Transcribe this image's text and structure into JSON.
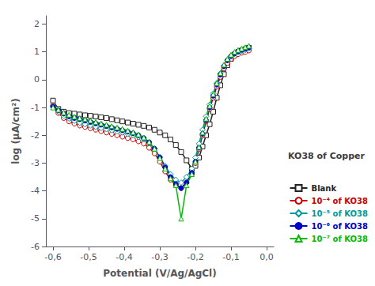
{
  "chart_data": {
    "type": "line",
    "legend_title": "KO38 of Copper",
    "xlabel": "Potential (V/Ag/AgCl)",
    "ylabel": "log (μA/cm²)",
    "xlim": [
      -0.62,
      0.02
    ],
    "ylim": [
      -6,
      2.3
    ],
    "xticks": [
      {
        "value": -0.6,
        "label": "-0,6"
      },
      {
        "value": -0.5,
        "label": "-0,5"
      },
      {
        "value": -0.4,
        "label": "-0,4"
      },
      {
        "value": -0.3,
        "label": "-0,3"
      },
      {
        "value": -0.2,
        "label": "-0,2"
      },
      {
        "value": -0.1,
        "label": "-0,1"
      },
      {
        "value": 0.0,
        "label": "0,0"
      }
    ],
    "yticks": [
      -6,
      -5,
      -4,
      -3,
      -2,
      -1,
      0,
      1,
      2
    ],
    "grid": false,
    "legend": "lower right",
    "x": [
      -0.6,
      -0.585,
      -0.57,
      -0.555,
      -0.54,
      -0.525,
      -0.51,
      -0.495,
      -0.48,
      -0.465,
      -0.45,
      -0.435,
      -0.42,
      -0.405,
      -0.39,
      -0.375,
      -0.36,
      -0.345,
      -0.33,
      -0.315,
      -0.3,
      -0.285,
      -0.27,
      -0.255,
      -0.24,
      -0.225,
      -0.21,
      -0.2,
      -0.19,
      -0.18,
      -0.17,
      -0.16,
      -0.15,
      -0.14,
      -0.13,
      -0.12,
      -0.11,
      -0.1,
      -0.09,
      -0.08,
      -0.07,
      -0.06,
      -0.05
    ],
    "series": [
      {
        "name": "Blank",
        "color": "#222222",
        "marker": "hollow-square",
        "values": [
          -0.75,
          -1.05,
          -1.15,
          -1.2,
          -1.22,
          -1.25,
          -1.28,
          -1.3,
          -1.32,
          -1.35,
          -1.38,
          -1.42,
          -1.46,
          -1.5,
          -1.54,
          -1.58,
          -1.62,
          -1.66,
          -1.72,
          -1.8,
          -1.9,
          -2.0,
          -2.15,
          -2.35,
          -2.6,
          -2.9,
          -3.2,
          -3.1,
          -2.8,
          -2.4,
          -2.0,
          -1.6,
          -1.15,
          -0.65,
          -0.2,
          0.2,
          0.52,
          0.75,
          0.9,
          1.0,
          1.05,
          1.1,
          1.15
        ]
      },
      {
        "name": "10⁻⁴ of KO38",
        "color": "#cc0000",
        "marker": "hollow-circle",
        "values": [
          -0.92,
          -1.2,
          -1.38,
          -1.5,
          -1.58,
          -1.65,
          -1.7,
          -1.75,
          -1.8,
          -1.85,
          -1.9,
          -1.95,
          -2.0,
          -2.05,
          -2.1,
          -2.15,
          -2.22,
          -2.3,
          -2.45,
          -2.65,
          -2.95,
          -3.3,
          -3.6,
          -3.8,
          -3.9,
          -3.7,
          -3.4,
          -3.0,
          -2.5,
          -2.0,
          -1.5,
          -1.05,
          -0.65,
          -0.25,
          0.1,
          0.4,
          0.6,
          0.75,
          0.85,
          0.92,
          0.97,
          1.0,
          1.05
        ]
      },
      {
        "name": "10⁻⁵ of KO38",
        "color": "#009999",
        "marker": "hollow-diamond",
        "values": [
          -0.95,
          -1.15,
          -1.3,
          -1.4,
          -1.48,
          -1.55,
          -1.6,
          -1.65,
          -1.7,
          -1.74,
          -1.78,
          -1.82,
          -1.86,
          -1.9,
          -1.95,
          -2.0,
          -2.06,
          -2.14,
          -2.28,
          -2.48,
          -2.78,
          -3.1,
          -3.4,
          -3.6,
          -3.7,
          -3.5,
          -3.2,
          -2.8,
          -2.3,
          -1.8,
          -1.32,
          -0.9,
          -0.5,
          -0.12,
          0.22,
          0.5,
          0.7,
          0.85,
          0.93,
          0.99,
          1.03,
          1.07,
          1.12
        ]
      },
      {
        "name": "10⁻⁶ of KO38",
        "color": "#0000cc",
        "marker": "circle",
        "values": [
          -0.97,
          -1.1,
          -1.22,
          -1.32,
          -1.38,
          -1.42,
          -1.47,
          -1.52,
          -1.57,
          -1.62,
          -1.67,
          -1.72,
          -1.77,
          -1.82,
          -1.87,
          -1.93,
          -2.0,
          -2.1,
          -2.25,
          -2.48,
          -2.8,
          -3.15,
          -3.5,
          -3.75,
          -3.9,
          -3.7,
          -3.35,
          -2.95,
          -2.45,
          -1.95,
          -1.46,
          -1.0,
          -0.58,
          -0.18,
          0.18,
          0.48,
          0.7,
          0.85,
          0.95,
          1.02,
          1.07,
          1.11,
          1.16
        ]
      },
      {
        "name": "10⁻⁷ of KO38",
        "color": "#00bb00",
        "marker": "hollow-triangle",
        "values": [
          -1.0,
          -1.08,
          -1.18,
          -1.26,
          -1.33,
          -1.38,
          -1.42,
          -1.47,
          -1.52,
          -1.57,
          -1.62,
          -1.67,
          -1.72,
          -1.77,
          -1.83,
          -1.89,
          -1.97,
          -2.08,
          -2.24,
          -2.48,
          -2.82,
          -3.2,
          -3.55,
          -3.8,
          -5.0,
          -3.8,
          -3.4,
          -2.95,
          -2.42,
          -1.9,
          -1.4,
          -0.94,
          -0.52,
          -0.12,
          0.24,
          0.54,
          0.75,
          0.9,
          1.0,
          1.07,
          1.12,
          1.17,
          1.22
        ]
      }
    ]
  }
}
